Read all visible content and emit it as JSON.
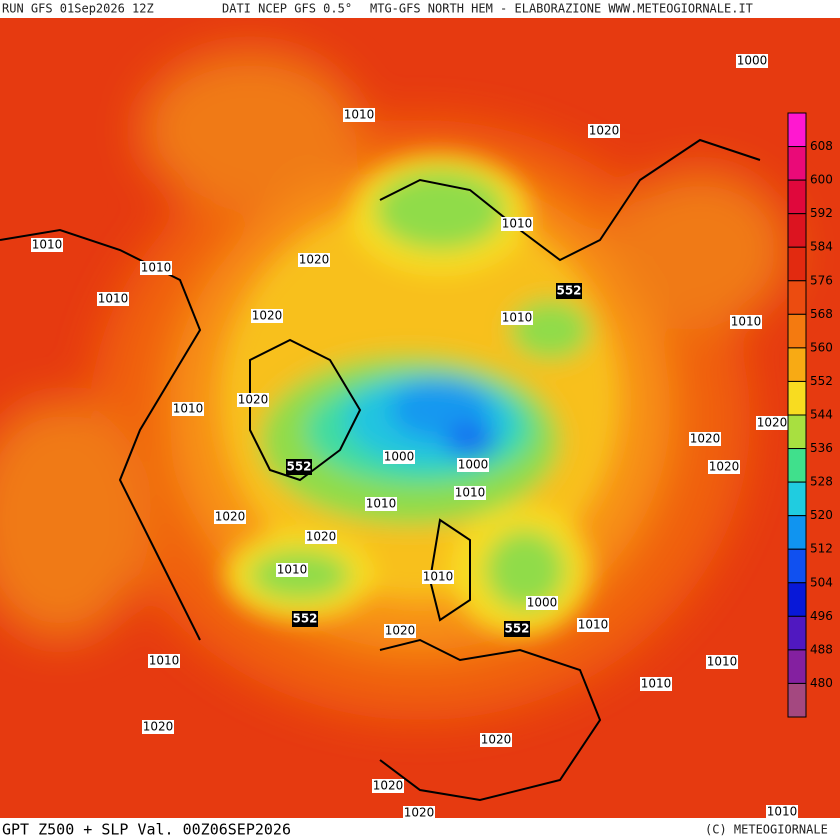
{
  "header": {
    "run": "RUN GFS 01Sep2026 12Z",
    "source": "DATI NCEP GFS 0.5°",
    "credit": "MTG-GFS NORTH HEM - ELABORAZIONE WWW.METEOGIORNALE.IT"
  },
  "footer": {
    "field": "GPT Z500 + SLP Val. 00Z06SEP2026",
    "copyright": "(C) METEOGIORNALE"
  },
  "scale": {
    "values": [
      608,
      600,
      592,
      584,
      576,
      568,
      560,
      552,
      544,
      536,
      528,
      520,
      512,
      504,
      496,
      488,
      480
    ],
    "colors": [
      "#ea0a78",
      "#e0083c",
      "#dc1420",
      "#e22a10",
      "#ec4c10",
      "#f47a10",
      "#f8aa14",
      "#f8dc20",
      "#a8e040",
      "#40e08c",
      "#20cce0",
      "#1094f0",
      "#1050f0",
      "#0818d8",
      "#5018c0",
      "#8420a0",
      "#a44880"
    ],
    "top_color": "#ff18d0"
  },
  "isobar_labels": [
    "1000",
    "1010",
    "1020",
    "1010",
    "1010",
    "1010",
    "1020",
    "1010",
    "1020",
    "1010",
    "1010",
    "1010",
    "1020",
    "1020",
    "1000",
    "1000",
    "1020",
    "1020",
    "1010",
    "1010",
    "1020",
    "1020",
    "1010",
    "1010",
    "1000",
    "1010",
    "1020",
    "1010",
    "1010",
    "1010",
    "1020",
    "1020",
    "1020",
    "1020",
    "1010"
  ],
  "z500_labels": [
    "552",
    "552",
    "552",
    "552"
  ]
}
